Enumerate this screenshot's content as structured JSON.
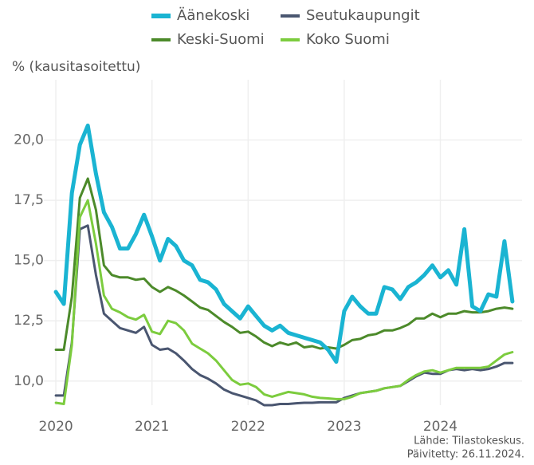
{
  "chart_data": {
    "type": "line",
    "y_label": "% (kausitasoitettu)",
    "notes": [
      "Lähde: Tilastokeskus.",
      "Päivitetty: 26.11.2024."
    ],
    "x": [
      2020,
      2020.083,
      2020.167,
      2020.25,
      2020.333,
      2020.417,
      2020.5,
      2020.583,
      2020.667,
      2020.75,
      2020.833,
      2020.917,
      2021,
      2021.083,
      2021.167,
      2021.25,
      2021.333,
      2021.417,
      2021.5,
      2021.583,
      2021.667,
      2021.75,
      2021.833,
      2021.917,
      2022,
      2022.083,
      2022.167,
      2022.25,
      2022.333,
      2022.417,
      2022.5,
      2022.583,
      2022.667,
      2022.75,
      2022.833,
      2022.917,
      2023,
      2023.083,
      2023.167,
      2023.25,
      2023.333,
      2023.417,
      2023.5,
      2023.583,
      2023.667,
      2023.75,
      2023.833,
      2023.917,
      2024,
      2024.083,
      2024.167,
      2024.25,
      2024.333,
      2024.417,
      2024.5,
      2024.583,
      2024.667,
      2024.75
    ],
    "series": [
      {
        "name": "Äänekoski",
        "color": "#1ab4d2",
        "values": [
          13.7,
          13.2,
          17.8,
          19.8,
          20.6,
          18.6,
          17.0,
          16.4,
          15.5,
          15.5,
          16.1,
          16.9,
          16.0,
          15.0,
          15.9,
          15.6,
          15.0,
          14.8,
          14.2,
          14.1,
          13.8,
          13.2,
          12.9,
          12.6,
          13.1,
          12.7,
          12.3,
          12.1,
          12.3,
          12.0,
          11.9,
          11.8,
          11.7,
          11.6,
          11.3,
          10.8,
          12.9,
          13.5,
          13.1,
          12.8,
          12.8,
          13.9,
          13.8,
          13.4,
          13.9,
          14.1,
          14.4,
          14.8,
          14.3,
          14.6,
          14.0,
          16.3,
          13.1,
          12.9,
          13.6,
          13.5,
          15.8,
          13.3
        ]
      },
      {
        "name": "Seutukaupungit",
        "color": "#4a5670",
        "values": [
          9.4,
          9.4,
          11.6,
          16.3,
          16.45,
          14.4,
          12.8,
          12.5,
          12.2,
          12.1,
          12.0,
          12.25,
          11.5,
          11.3,
          11.35,
          11.15,
          10.85,
          10.5,
          10.25,
          10.1,
          9.9,
          9.65,
          9.5,
          9.4,
          9.3,
          9.2,
          9.0,
          9.0,
          9.05,
          9.05,
          9.08,
          9.1,
          9.1,
          9.12,
          9.12,
          9.12,
          9.3,
          9.4,
          9.5,
          9.55,
          9.6,
          9.7,
          9.75,
          9.8,
          10.0,
          10.2,
          10.35,
          10.3,
          10.3,
          10.45,
          10.5,
          10.45,
          10.5,
          10.45,
          10.5,
          10.6,
          10.75,
          10.75
        ]
      },
      {
        "name": "Keski-Suomi",
        "color": "#4c8a2a",
        "values": [
          11.3,
          11.3,
          13.5,
          17.6,
          18.4,
          17.1,
          14.8,
          14.4,
          14.3,
          14.3,
          14.2,
          14.25,
          13.9,
          13.7,
          13.9,
          13.75,
          13.55,
          13.3,
          13.05,
          12.95,
          12.7,
          12.45,
          12.25,
          12.0,
          12.05,
          11.85,
          11.6,
          11.45,
          11.6,
          11.5,
          11.6,
          11.4,
          11.45,
          11.35,
          11.4,
          11.35,
          11.5,
          11.7,
          11.75,
          11.9,
          11.95,
          12.1,
          12.1,
          12.2,
          12.35,
          12.6,
          12.6,
          12.8,
          12.65,
          12.8,
          12.8,
          12.9,
          12.85,
          12.85,
          12.9,
          13.0,
          13.05,
          13.0
        ]
      },
      {
        "name": "Koko Suomi",
        "color": "#7ccc3e",
        "values": [
          9.1,
          9.05,
          11.5,
          16.8,
          17.5,
          15.7,
          13.55,
          13.0,
          12.85,
          12.65,
          12.55,
          12.75,
          12.05,
          11.95,
          12.5,
          12.4,
          12.1,
          11.55,
          11.35,
          11.15,
          10.85,
          10.45,
          10.05,
          9.85,
          9.9,
          9.75,
          9.45,
          9.35,
          9.45,
          9.55,
          9.5,
          9.45,
          9.35,
          9.3,
          9.28,
          9.25,
          9.25,
          9.35,
          9.5,
          9.55,
          9.6,
          9.7,
          9.75,
          9.8,
          10.05,
          10.25,
          10.4,
          10.45,
          10.35,
          10.45,
          10.55,
          10.55,
          10.55,
          10.55,
          10.6,
          10.85,
          11.1,
          11.2
        ]
      }
    ],
    "xlim": [
      2019.875,
      2024.85
    ],
    "xticks": [
      2020,
      2021,
      2022,
      2023,
      2024
    ],
    "ylim": [
      9,
      22.5
    ],
    "yticks": [
      {
        "value": 10,
        "label": "10,0"
      },
      {
        "value": 12.5,
        "label": "12,5"
      },
      {
        "value": 15,
        "label": "15,0"
      },
      {
        "value": 17.5,
        "label": "17,5"
      },
      {
        "value": 20,
        "label": "20,0"
      }
    ],
    "grid": true,
    "legend": "top"
  }
}
